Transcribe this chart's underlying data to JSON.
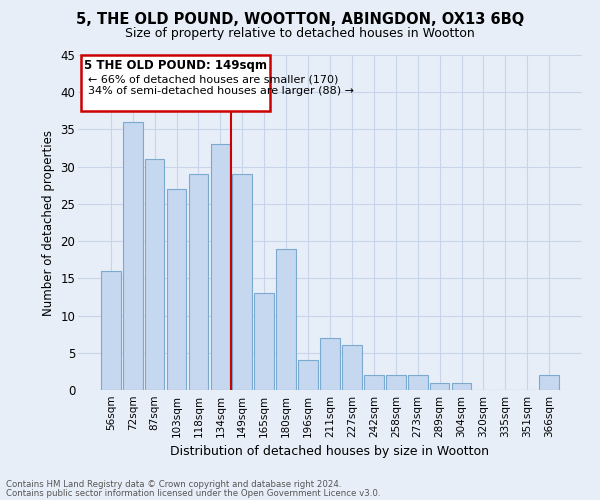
{
  "title": "5, THE OLD POUND, WOOTTON, ABINGDON, OX13 6BQ",
  "subtitle": "Size of property relative to detached houses in Wootton",
  "xlabel": "Distribution of detached houses by size in Wootton",
  "ylabel": "Number of detached properties",
  "footnote1": "Contains HM Land Registry data © Crown copyright and database right 2024.",
  "footnote2": "Contains public sector information licensed under the Open Government Licence v3.0.",
  "annotation_line1": "5 THE OLD POUND: 149sqm",
  "annotation_line2": "← 66% of detached houses are smaller (170)",
  "annotation_line3": "34% of semi-detached houses are larger (88) →",
  "bar_labels": [
    "56sqm",
    "72sqm",
    "87sqm",
    "103sqm",
    "118sqm",
    "134sqm",
    "149sqm",
    "165sqm",
    "180sqm",
    "196sqm",
    "211sqm",
    "227sqm",
    "242sqm",
    "258sqm",
    "273sqm",
    "289sqm",
    "304sqm",
    "320sqm",
    "335sqm",
    "351sqm",
    "366sqm"
  ],
  "bar_values": [
    16,
    36,
    31,
    27,
    29,
    33,
    29,
    13,
    19,
    4,
    7,
    6,
    2,
    2,
    2,
    1,
    1,
    0,
    0,
    0,
    2
  ],
  "highlight_index": 6,
  "bar_color": "#c5d8ef",
  "bar_edge_color": "#7aaad0",
  "highlight_line_color": "#cc0000",
  "box_color": "#cc0000",
  "ylim": [
    0,
    45
  ],
  "yticks": [
    0,
    5,
    10,
    15,
    20,
    25,
    30,
    35,
    40,
    45
  ],
  "grid_color": "#c8d4e8",
  "bg_color": "#e8eef8"
}
